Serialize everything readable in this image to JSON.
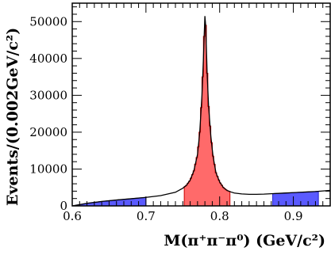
{
  "chart_data": {
    "type": "area",
    "xlabel": "M(π⁺π⁻π⁰) (GeV/c²)",
    "ylabel": "Events/(0.002GeV/c²)",
    "xlim": [
      0.6,
      0.95
    ],
    "ylim": [
      0,
      55000
    ],
    "grid": false,
    "x_ticks": [
      0.6,
      0.7,
      0.8,
      0.9
    ],
    "x_tick_labels": [
      "0.6",
      "0.7",
      "0.8",
      "0.9"
    ],
    "y_ticks": [
      0,
      10000,
      20000,
      30000,
      40000,
      50000
    ],
    "y_tick_labels": [
      "0",
      "10000",
      "20000",
      "30000",
      "40000",
      "50000"
    ],
    "series": [
      {
        "style": "line",
        "color": "#000000",
        "x": [
          0.6,
          0.62,
          0.64,
          0.66,
          0.68,
          0.7,
          0.72,
          0.74,
          0.75,
          0.755,
          0.76,
          0.765,
          0.77,
          0.773,
          0.776,
          0.778,
          0.779,
          0.78,
          0.781,
          0.782,
          0.783,
          0.785,
          0.788,
          0.791,
          0.795,
          0.8,
          0.805,
          0.81,
          0.815,
          0.82,
          0.83,
          0.84,
          0.85,
          0.86,
          0.87,
          0.88,
          0.89,
          0.9,
          0.91,
          0.92,
          0.93,
          0.94,
          0.95
        ],
        "y": [
          0,
          700,
          1200,
          1600,
          1950,
          2300,
          2800,
          3700,
          4800,
          5600,
          7000,
          9500,
          14000,
          20000,
          30000,
          40000,
          46000,
          51500,
          49000,
          43000,
          36000,
          27000,
          19000,
          13500,
          9000,
          6500,
          5000,
          4200,
          3800,
          3500,
          3250,
          3150,
          3150,
          3200,
          3300,
          3400,
          3500,
          3600,
          3700,
          3800,
          3900,
          4050,
          4200
        ]
      },
      {
        "style": "histogram",
        "color": "#ff6a6a",
        "range": [
          0.752,
          0.814
        ]
      },
      {
        "style": "histogram",
        "color": "#5a5aff",
        "range": [
          0.6,
          0.7
        ]
      },
      {
        "style": "histogram",
        "color": "#5a5aff",
        "range": [
          0.872,
          0.934
        ]
      }
    ]
  }
}
